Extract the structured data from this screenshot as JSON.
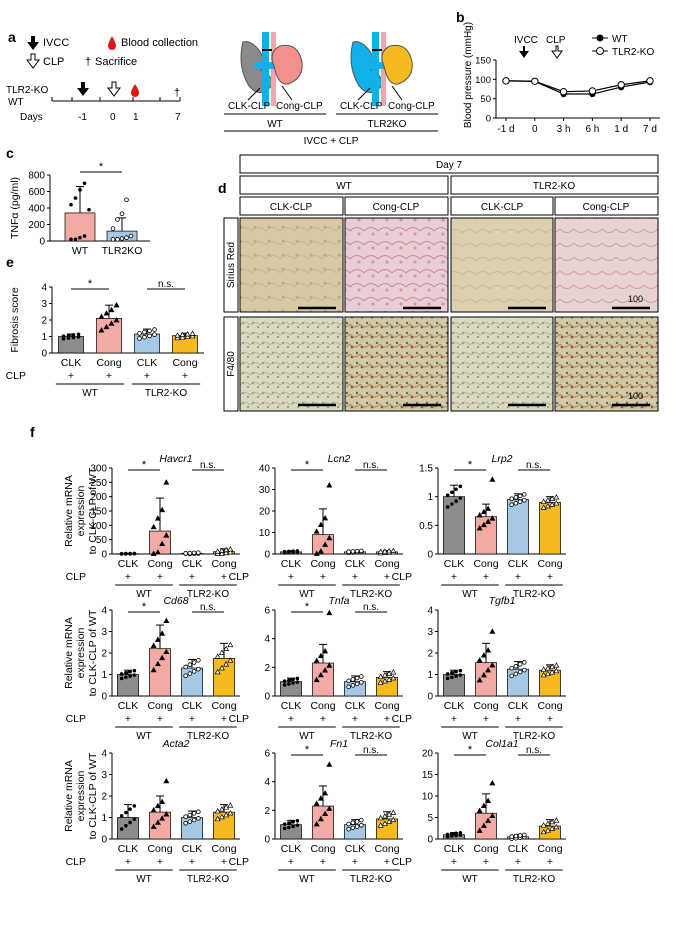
{
  "colors": {
    "gray": "#8c8c8c",
    "pink": "#f4aaa4",
    "blue": "#a5c8e6",
    "yellow": "#f7ba1e",
    "ivcc_blue": "#12b0ea",
    "cong_red": "#f4908c",
    "artery": "#f5a3b0"
  },
  "panel_a": {
    "letter": "a",
    "legend": {
      "ivcc": "IVCC",
      "blood": "Blood collection",
      "clp": "CLP",
      "sacrifice": "Sacrifice"
    },
    "group_labels": [
      "TLR2-KO",
      "WT"
    ],
    "days_label": "Days",
    "days": [
      "-1",
      "0",
      "1",
      "7"
    ],
    "kidney_labels": {
      "clk": "CLK-CLP",
      "cong": "Cong-CLP"
    },
    "groups": [
      "WT",
      "TLR2KO"
    ],
    "caption": "IVCC + CLP"
  },
  "panel_b": {
    "letter": "b",
    "ylabel": "Blood pressure (mmHg)",
    "ivcc": "IVCC",
    "clp": "CLP",
    "legend": [
      "WT",
      "TLR2-KO"
    ],
    "chart_data": {
      "type": "line",
      "categories": [
        "-1 d",
        "0",
        "3 h",
        "6 h",
        "1 d",
        "7 d"
      ],
      "ylim": [
        0,
        150
      ],
      "yticks": [
        0,
        50,
        100,
        150
      ],
      "ylabel": "Blood pressure (mmHg)",
      "series": [
        {
          "name": "WT",
          "values": [
            96,
            95,
            62,
            62,
            80,
            93
          ]
        },
        {
          "name": "TLR2-KO",
          "values": [
            96,
            95,
            68,
            70,
            86,
            96
          ]
        }
      ]
    }
  },
  "panel_c": {
    "letter": "c",
    "sig": "*",
    "chart_data": {
      "type": "bar",
      "categories": [
        "WT",
        "TLR2KO"
      ],
      "values": [
        340,
        120
      ],
      "errors": [
        320,
        160
      ],
      "ylim": [
        0,
        800
      ],
      "yticks": [
        0,
        200,
        400,
        600,
        800
      ],
      "ylabel": "TNFα (pg/ml)",
      "points": [
        [
          20,
          20,
          40,
          60,
          380,
          440,
          520,
          620,
          700
        ],
        [
          20,
          20,
          30,
          40,
          60,
          150,
          260,
          330,
          500
        ]
      ]
    }
  },
  "panel_d": {
    "letter": "d",
    "day": "Day 7",
    "groups": [
      "WT",
      "TLR2-KO"
    ],
    "columns": [
      "CLK-CLP",
      "Cong-CLP",
      "CLK-CLP",
      "Cong-CLP"
    ],
    "rows": [
      "Sirius Red",
      "F4/80"
    ],
    "scale": "100"
  },
  "panel_e": {
    "letter": "e",
    "sigs": [
      "*",
      "n.s."
    ],
    "chart_data": {
      "type": "bar",
      "categories": [
        "CLK",
        "Cong",
        "CLK",
        "Cong"
      ],
      "groups": [
        "WT",
        "TLR2-KO"
      ],
      "clp_label": "CLP",
      "values": [
        1.0,
        2.1,
        1.15,
        1.05
      ],
      "errors": [
        0.15,
        0.8,
        0.3,
        0.15
      ],
      "ylim": [
        0,
        4
      ],
      "yticks": [
        0,
        1,
        2,
        3,
        4
      ],
      "ylabel": "Fibrosis score"
    }
  },
  "panel_f": {
    "letter": "f",
    "ylabel_lines": [
      "Relative mRNA",
      "expression",
      "to CLK-CLP of WT"
    ],
    "clp_label": "CLP",
    "plus": "+",
    "categories": [
      "CLK",
      "Cong",
      "CLK",
      "Cong"
    ],
    "groups": [
      "WT",
      "TLR2-KO"
    ],
    "charts": [
      {
        "gene": "Havcr1",
        "ylim": [
          0,
          300
        ],
        "yticks": [
          0,
          50,
          100,
          150,
          200,
          250,
          300
        ],
        "values": [
          1,
          80,
          2,
          8
        ],
        "errors": [
          1,
          115,
          3,
          10
        ],
        "sigs": [
          "*",
          "n.s."
        ],
        "pmax": 250
      },
      {
        "gene": "Lcn2",
        "ylim": [
          0,
          40
        ],
        "yticks": [
          0,
          10,
          20,
          30,
          40
        ],
        "values": [
          1,
          9,
          1,
          1
        ],
        "errors": [
          0.5,
          12,
          0.5,
          0.6
        ],
        "sigs": [
          "*",
          "n.s."
        ],
        "pmax": 32
      },
      {
        "gene": "Lrp2",
        "ylim": [
          0,
          1.5
        ],
        "yticks": [
          0,
          0.5,
          1.0,
          1.5
        ],
        "values": [
          1.0,
          0.65,
          0.95,
          0.9
        ],
        "errors": [
          0.2,
          0.22,
          0.1,
          0.1
        ],
        "sigs": [
          "*",
          "n.s."
        ],
        "pmax": 1.3
      },
      {
        "gene": "Cd68",
        "ylim": [
          0,
          4
        ],
        "yticks": [
          0,
          1,
          2,
          3,
          4
        ],
        "values": [
          1.0,
          2.2,
          1.3,
          1.75
        ],
        "errors": [
          0.2,
          1.1,
          0.4,
          0.7
        ],
        "sigs": [
          "*",
          "n.s."
        ],
        "pmax": 3.5
      },
      {
        "gene": "Tnfa",
        "ylim": [
          0,
          6
        ],
        "yticks": [
          0,
          2,
          4,
          6
        ],
        "values": [
          1.0,
          2.3,
          1.0,
          1.3
        ],
        "errors": [
          0.25,
          1.3,
          0.4,
          0.4
        ],
        "sigs": [
          "*",
          "n.s."
        ],
        "pmax": 5.8
      },
      {
        "gene": "Tgfb1",
        "ylim": [
          0,
          4
        ],
        "yticks": [
          0,
          1,
          2,
          3,
          4
        ],
        "values": [
          1.0,
          1.55,
          1.25,
          1.2
        ],
        "errors": [
          0.2,
          0.9,
          0.35,
          0.25
        ],
        "sigs": [],
        "pmax": 3
      },
      {
        "gene": "Acta2",
        "ylim": [
          0,
          4
        ],
        "yticks": [
          0,
          1,
          2,
          3,
          4
        ],
        "values": [
          1.0,
          1.25,
          1.0,
          1.25
        ],
        "errors": [
          0.6,
          0.75,
          0.3,
          0.35
        ],
        "sigs": [],
        "pmax": 2.7
      },
      {
        "gene": "Fn1",
        "ylim": [
          0,
          6
        ],
        "yticks": [
          0,
          2,
          4,
          6
        ],
        "values": [
          1.0,
          2.3,
          1.0,
          1.4
        ],
        "errors": [
          0.3,
          1.4,
          0.35,
          0.5
        ],
        "sigs": [
          "*",
          "n.s."
        ],
        "pmax": 5.2
      },
      {
        "gene": "Col1a1",
        "ylim": [
          0,
          20
        ],
        "yticks": [
          0,
          5,
          10,
          15,
          20
        ],
        "values": [
          1,
          6,
          0.5,
          3
        ],
        "errors": [
          0.5,
          4.5,
          0.5,
          1.5
        ],
        "sigs": [
          "*",
          "n.s."
        ],
        "pmax": 13
      }
    ]
  }
}
